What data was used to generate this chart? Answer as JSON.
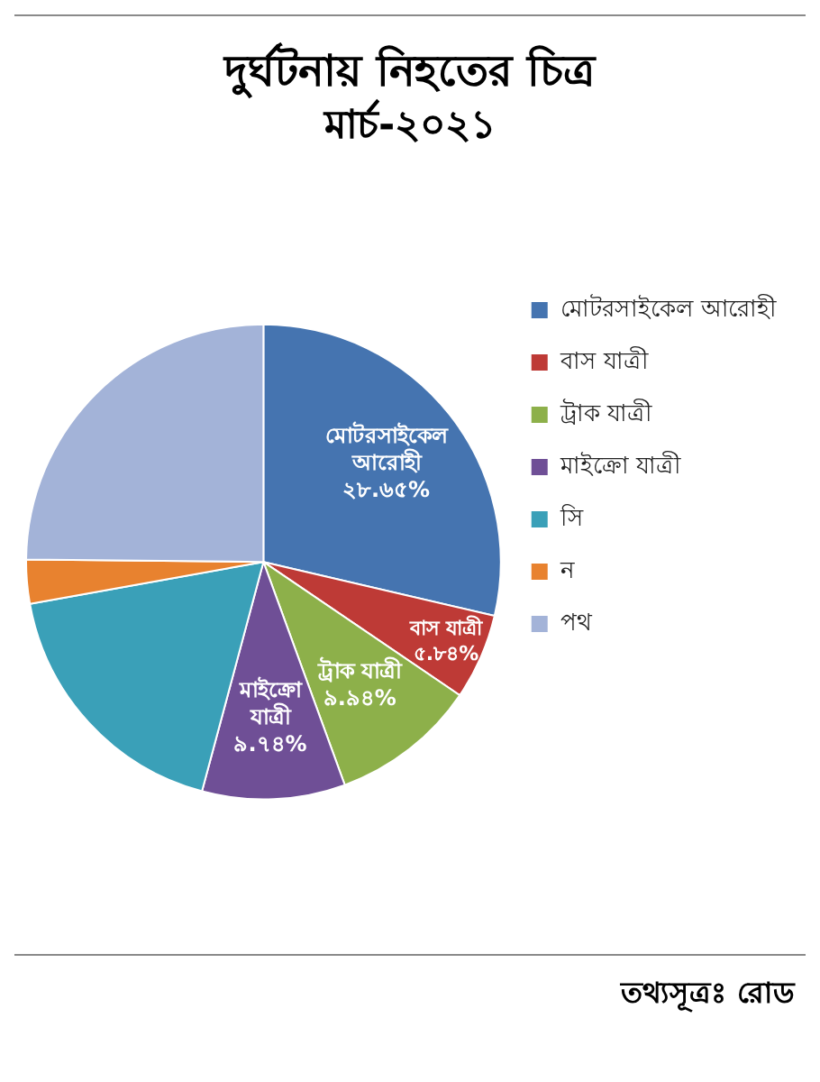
{
  "chart_data": {
    "type": "pie",
    "title": "দুর্ঘটনায় নিহতের চিত্র",
    "subtitle": "মার্চ-২০২১",
    "categories": [
      "মোটরসাইকেল আরোহী",
      "বাস যাত্রী",
      "ট্রাক যাত্রী",
      "মাইক্রো যাত্রী",
      "সি",
      "ন",
      "পথ"
    ],
    "values": [
      28.65,
      5.84,
      9.94,
      9.74,
      18,
      3,
      24.83
    ],
    "colors": [
      "#4574b0",
      "#be3a36",
      "#8db04a",
      "#6f4f96",
      "#3aa0b8",
      "#e8822f",
      "#a3b3d8"
    ],
    "value_labels": [
      "২৮.৬৫%",
      "৫.৮৪%",
      "৯.৯৪%",
      "৯.৭৪%",
      null,
      null,
      null
    ],
    "legend": "right",
    "annotations": [
      "তথ্যসূত্রঃ রোড"
    ]
  }
}
